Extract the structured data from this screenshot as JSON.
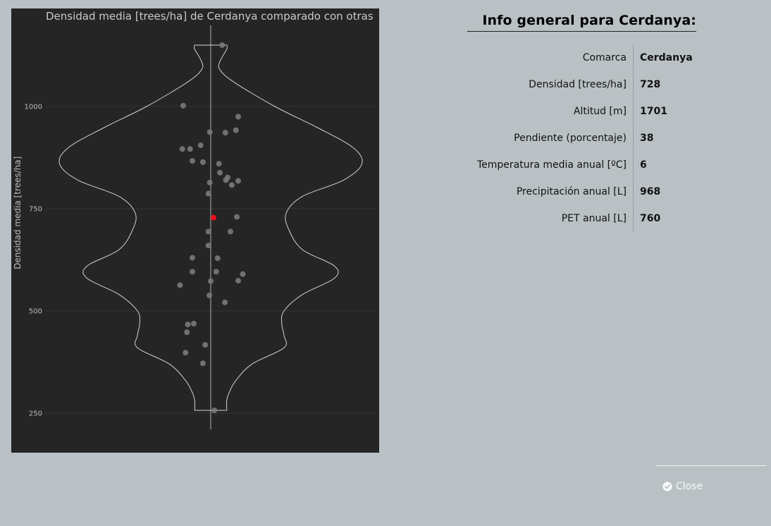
{
  "chart_data": {
    "type": "violin",
    "title": "Densidad media [trees/ha] de Cerdanya comparado con otras",
    "ylabel": "Densidad media [trees/ha]",
    "xlabel": "",
    "ylim": [
      210,
      1170
    ],
    "yticks": [
      250,
      500,
      750,
      1000
    ],
    "grid": true,
    "highlight": {
      "value": 728,
      "color": "#e8101c"
    },
    "points": [
      {
        "x": 0.025,
        "y": 1150
      },
      {
        "x": -0.06,
        "y": 1002
      },
      {
        "x": 0.06,
        "y": 975
      },
      {
        "x": 0.055,
        "y": 942
      },
      {
        "x": -0.002,
        "y": 937
      },
      {
        "x": 0.032,
        "y": 936
      },
      {
        "x": -0.022,
        "y": 905
      },
      {
        "x": -0.062,
        "y": 896
      },
      {
        "x": -0.045,
        "y": 896
      },
      {
        "x": -0.04,
        "y": 867
      },
      {
        "x": -0.017,
        "y": 864
      },
      {
        "x": 0.018,
        "y": 860
      },
      {
        "x": 0.02,
        "y": 838
      },
      {
        "x": 0.037,
        "y": 826
      },
      {
        "x": 0.06,
        "y": 818
      },
      {
        "x": 0.033,
        "y": 820
      },
      {
        "x": -0.002,
        "y": 814
      },
      {
        "x": 0.046,
        "y": 808
      },
      {
        "x": -0.005,
        "y": 787
      },
      {
        "x": 0.057,
        "y": 730
      },
      {
        "x": -0.005,
        "y": 694
      },
      {
        "x": 0.043,
        "y": 694
      },
      {
        "x": -0.005,
        "y": 660
      },
      {
        "x": 0.015,
        "y": 629
      },
      {
        "x": -0.04,
        "y": 630
      },
      {
        "x": -0.04,
        "y": 596
      },
      {
        "x": 0.012,
        "y": 596
      },
      {
        "x": 0.07,
        "y": 590
      },
      {
        "x": 0.06,
        "y": 574
      },
      {
        "x": 0.0,
        "y": 573
      },
      {
        "x": -0.067,
        "y": 563
      },
      {
        "x": -0.003,
        "y": 538
      },
      {
        "x": 0.031,
        "y": 521
      },
      {
        "x": -0.037,
        "y": 469
      },
      {
        "x": -0.05,
        "y": 467
      },
      {
        "x": -0.052,
        "y": 448
      },
      {
        "x": -0.012,
        "y": 417
      },
      {
        "x": -0.055,
        "y": 398
      },
      {
        "x": -0.017,
        "y": 372
      },
      {
        "x": 0.008,
        "y": 257
      }
    ],
    "violin_profile": [
      {
        "y": 257,
        "w": 0.035
      },
      {
        "y": 280,
        "w": 0.035
      },
      {
        "y": 300,
        "w": 0.04
      },
      {
        "y": 330,
        "w": 0.055
      },
      {
        "y": 370,
        "w": 0.09
      },
      {
        "y": 410,
        "w": 0.16
      },
      {
        "y": 440,
        "w": 0.16
      },
      {
        "y": 470,
        "w": 0.155
      },
      {
        "y": 500,
        "w": 0.16
      },
      {
        "y": 540,
        "w": 0.2
      },
      {
        "y": 580,
        "w": 0.27
      },
      {
        "y": 610,
        "w": 0.27
      },
      {
        "y": 650,
        "w": 0.2
      },
      {
        "y": 700,
        "w": 0.17
      },
      {
        "y": 740,
        "w": 0.165
      },
      {
        "y": 780,
        "w": 0.2
      },
      {
        "y": 820,
        "w": 0.29
      },
      {
        "y": 860,
        "w": 0.33
      },
      {
        "y": 900,
        "w": 0.31
      },
      {
        "y": 950,
        "w": 0.23
      },
      {
        "y": 1000,
        "w": 0.14
      },
      {
        "y": 1060,
        "w": 0.05
      },
      {
        "y": 1090,
        "w": 0.02
      },
      {
        "y": 1110,
        "w": 0.02
      },
      {
        "y": 1140,
        "w": 0.035
      },
      {
        "y": 1150,
        "w": 0.035
      }
    ],
    "colors": {
      "background": "#252525",
      "grid": "#333333",
      "outline": "#d2d2d2",
      "point": "#7a7a7a"
    }
  },
  "info": {
    "title": "Info general para Cerdanya:",
    "rows": [
      {
        "label": "Comarca",
        "value": "Cerdanya"
      },
      {
        "label": "Densidad [trees/ha]",
        "value": "728"
      },
      {
        "label": "Altitud [m]",
        "value": "1701"
      },
      {
        "label": "Pendiente (porcentaje)",
        "value": "38"
      },
      {
        "label": "Temperatura media anual [ºC]",
        "value": "6"
      },
      {
        "label": "Precipitación anual [L]",
        "value": "968"
      },
      {
        "label": "PET anual [L]",
        "value": "760"
      }
    ]
  },
  "footer": {
    "close_label": "Close",
    "close_icon": "check-circle-icon"
  }
}
